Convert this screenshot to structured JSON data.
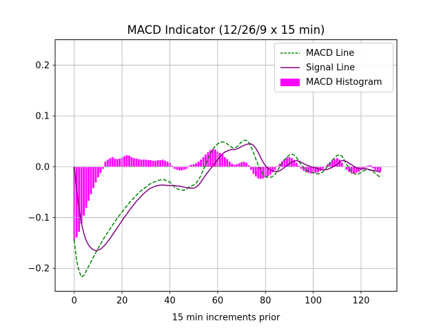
{
  "chart_data": {
    "type": "line+bar",
    "title": "MACD Indicator (12/26/9 x 15 min)",
    "xlabel": "15 min increments prior",
    "ylabel": "",
    "grid": true,
    "x_start": 0,
    "x_step": 1,
    "xlim": [
      -8,
      135
    ],
    "ylim": [
      -0.245,
      0.25
    ],
    "x_ticks": [
      0,
      20,
      40,
      60,
      80,
      100,
      120
    ],
    "x_tick_labels": [
      "0",
      "20",
      "40",
      "60",
      "80",
      "100",
      "120"
    ],
    "y_ticks": [
      -0.2,
      -0.1,
      0.0,
      0.1,
      0.2
    ],
    "y_tick_labels": [
      "−0.2",
      "−0.1",
      "0.0",
      "0.1",
      "0.2"
    ],
    "colors": {
      "macd_line": "#008000",
      "signal_line": "#800080",
      "histogram": "#ff00ff",
      "grid": "#b0b0b0",
      "spine": "#000000"
    },
    "legend": {
      "position": "upper right",
      "entries": [
        "MACD Line",
        "Signal Line",
        "MACD Histogram"
      ]
    },
    "series": [
      {
        "name": "MACD Line",
        "render": "line",
        "style": "dashed",
        "color_key": "macd_line",
        "values": [
          -0.144,
          -0.185,
          -0.205,
          -0.217,
          -0.214,
          -0.205,
          -0.196,
          -0.187,
          -0.178,
          -0.169,
          -0.16,
          -0.152,
          -0.144,
          -0.136,
          -0.129,
          -0.122,
          -0.115,
          -0.108,
          -0.101,
          -0.095,
          -0.089,
          -0.083,
          -0.077,
          -0.071,
          -0.066,
          -0.061,
          -0.056,
          -0.051,
          -0.047,
          -0.043,
          -0.04,
          -0.036,
          -0.033,
          -0.031,
          -0.029,
          -0.027,
          -0.026,
          -0.025,
          -0.026,
          -0.028,
          -0.03,
          -0.035,
          -0.04,
          -0.043,
          -0.045,
          -0.046,
          -0.046,
          -0.044,
          -0.04,
          -0.038,
          -0.036,
          -0.032,
          -0.026,
          -0.017,
          -0.006,
          0.005,
          0.016,
          0.026,
          0.034,
          0.041,
          0.045,
          0.048,
          0.049,
          0.048,
          0.045,
          0.041,
          0.038,
          0.037,
          0.039,
          0.044,
          0.049,
          0.052,
          0.052,
          0.048,
          0.039,
          0.028,
          0.015,
          0.003,
          -0.008,
          -0.015,
          -0.019,
          -0.021,
          -0.021,
          -0.019,
          -0.015,
          -0.008,
          0.0,
          0.008,
          0.014,
          0.019,
          0.023,
          0.025,
          0.023,
          0.018,
          0.011,
          0.004,
          -0.002,
          -0.006,
          -0.009,
          -0.011,
          -0.012,
          -0.013,
          -0.014,
          -0.013,
          -0.01,
          -0.005,
          0.001,
          0.007,
          0.013,
          0.018,
          0.022,
          0.024,
          0.021,
          0.013,
          0.004,
          -0.003,
          -0.009,
          -0.013,
          -0.015,
          -0.014,
          -0.011,
          -0.008,
          -0.006,
          -0.005,
          -0.006,
          -0.009,
          -0.013,
          -0.017,
          -0.021
        ]
      },
      {
        "name": "Signal Line",
        "render": "line",
        "style": "solid",
        "color_key": "signal_line",
        "values": [
          0.0,
          -0.046,
          -0.083,
          -0.111,
          -0.131,
          -0.145,
          -0.154,
          -0.16,
          -0.163,
          -0.165,
          -0.164,
          -0.162,
          -0.158,
          -0.153,
          -0.147,
          -0.141,
          -0.134,
          -0.127,
          -0.12,
          -0.113,
          -0.106,
          -0.099,
          -0.093,
          -0.086,
          -0.08,
          -0.074,
          -0.068,
          -0.063,
          -0.058,
          -0.053,
          -0.049,
          -0.045,
          -0.042,
          -0.04,
          -0.038,
          -0.037,
          -0.036,
          -0.036,
          -0.036,
          -0.037,
          -0.037,
          -0.037,
          -0.037,
          -0.038,
          -0.038,
          -0.039,
          -0.04,
          -0.041,
          -0.042,
          -0.042,
          -0.042,
          -0.04,
          -0.036,
          -0.03,
          -0.023,
          -0.016,
          -0.01,
          -0.004,
          0.002,
          0.008,
          0.014,
          0.02,
          0.025,
          0.029,
          0.031,
          0.033,
          0.034,
          0.034,
          0.035,
          0.037,
          0.04,
          0.042,
          0.044,
          0.045,
          0.045,
          0.042,
          0.036,
          0.028,
          0.018,
          0.009,
          0.002,
          -0.003,
          -0.006,
          -0.008,
          -0.009,
          -0.009,
          -0.008,
          -0.005,
          -0.001,
          0.003,
          0.006,
          0.009,
          0.011,
          0.012,
          0.011,
          0.009,
          0.006,
          0.004,
          0.002,
          0.0,
          -0.001,
          -0.002,
          -0.004,
          -0.005,
          -0.006,
          -0.006,
          -0.005,
          -0.003,
          -0.001,
          0.002,
          0.005,
          0.009,
          0.012,
          0.012,
          0.01,
          0.007,
          0.004,
          0.001,
          -0.002,
          -0.004,
          -0.004,
          -0.004,
          -0.004,
          -0.005,
          -0.007,
          -0.007,
          -0.008,
          -0.009,
          -0.011
        ]
      },
      {
        "name": "MACD Histogram",
        "render": "bar",
        "color_key": "histogram",
        "values": [
          -0.145,
          -0.139,
          -0.128,
          -0.112,
          -0.096,
          -0.081,
          -0.067,
          -0.054,
          -0.042,
          -0.031,
          -0.021,
          -0.012,
          -0.004,
          0.01,
          0.014,
          0.017,
          0.019,
          0.016,
          0.015,
          0.016,
          0.018,
          0.021,
          0.023,
          0.022,
          0.019,
          0.017,
          0.016,
          0.015,
          0.014,
          0.014,
          0.014,
          0.013,
          0.013,
          0.012,
          0.012,
          0.013,
          0.013,
          0.014,
          0.012,
          0.01,
          0.008,
          0.002,
          -0.004,
          -0.006,
          -0.007,
          -0.007,
          -0.006,
          -0.004,
          0.002,
          0.004,
          0.005,
          0.007,
          0.01,
          0.014,
          0.019,
          0.024,
          0.029,
          0.033,
          0.035,
          0.034,
          0.03,
          0.027,
          0.024,
          0.019,
          0.015,
          0.01,
          0.006,
          0.004,
          0.005,
          0.007,
          0.009,
          0.01,
          0.008,
          0.003,
          -0.006,
          -0.014,
          -0.019,
          -0.023,
          -0.024,
          -0.023,
          -0.021,
          -0.019,
          -0.016,
          -0.011,
          -0.006,
          0.001,
          0.006,
          0.011,
          0.015,
          0.018,
          0.019,
          0.017,
          0.013,
          0.008,
          0.002,
          -0.004,
          -0.008,
          -0.011,
          -0.012,
          -0.013,
          -0.013,
          -0.012,
          -0.011,
          -0.008,
          -0.004,
          0.001,
          0.005,
          0.009,
          0.013,
          0.015,
          0.017,
          0.014,
          0.008,
          0.0,
          -0.006,
          -0.01,
          -0.013,
          -0.014,
          -0.012,
          -0.01,
          -0.007,
          -0.004,
          -0.002,
          0.002,
          0.003,
          -0.003,
          -0.006,
          -0.008,
          -0.01
        ]
      }
    ]
  }
}
